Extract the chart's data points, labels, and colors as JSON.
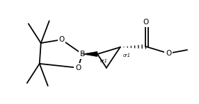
{
  "background": "#ffffff",
  "line_color": "#000000",
  "lw": 1.3,
  "fs": 7.5,
  "figsize": [
    2.86,
    1.5
  ],
  "dpi": 100,
  "xlim": [
    0,
    286
  ],
  "ylim": [
    0,
    150
  ]
}
